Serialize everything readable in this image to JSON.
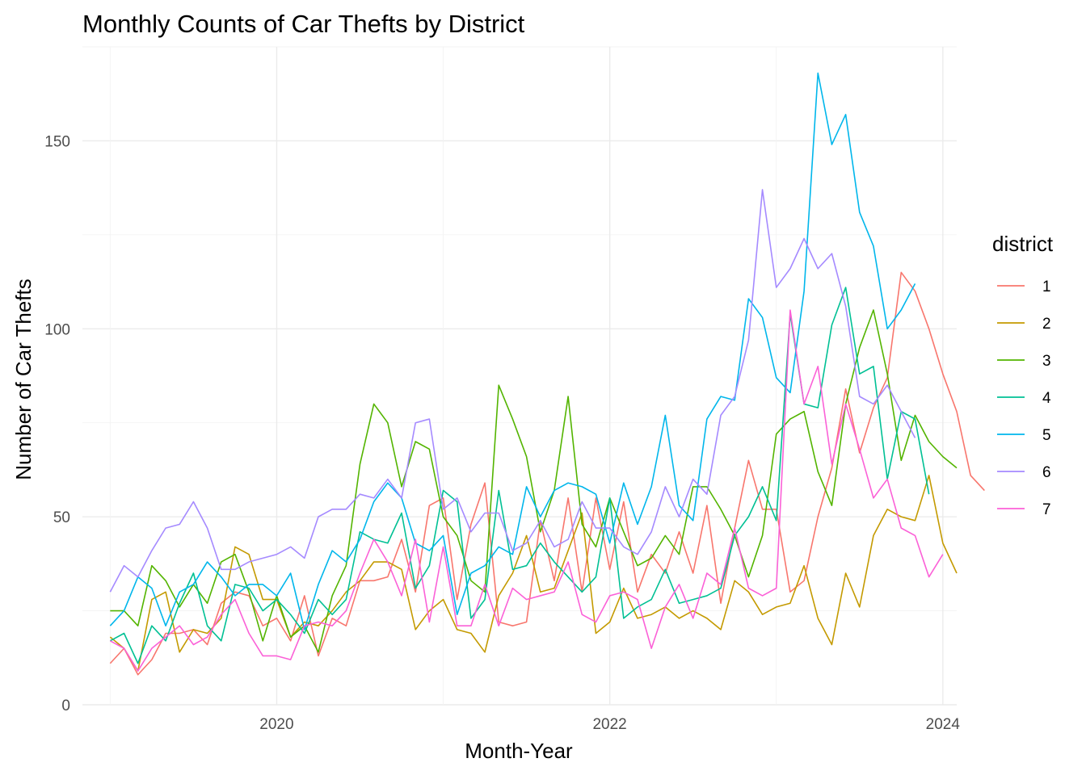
{
  "chart_data": {
    "type": "line",
    "title": "Monthly Counts of Car Thefts by District",
    "xlabel": "Month-Year",
    "ylabel": "Number of Car Thefts",
    "x_start": "2019-01",
    "x_ticks": [
      "2020",
      "2022",
      "2024"
    ],
    "x_tick_values": [
      "2020-01",
      "2022-01",
      "2024-01"
    ],
    "xlim": [
      "2018-11",
      "2024-02"
    ],
    "y_ticks": [
      0,
      50,
      100,
      150
    ],
    "ylim": [
      0,
      175
    ],
    "grid": true,
    "legend": {
      "title": "district",
      "position": "right"
    },
    "series": [
      {
        "name": "1",
        "color": "#F8766D",
        "values": [
          11,
          15,
          8,
          12,
          19,
          19,
          20,
          16,
          27,
          30,
          29,
          21,
          23,
          17,
          29,
          13,
          23,
          21,
          33,
          33,
          34,
          44,
          30,
          53,
          55,
          28,
          48,
          59,
          22,
          21,
          22,
          49,
          33,
          55,
          30,
          55,
          36,
          54,
          30,
          40,
          35,
          46,
          35,
          53,
          27,
          47,
          65,
          52,
          52,
          30,
          33,
          50,
          63,
          84,
          67,
          79,
          87,
          115,
          110,
          100,
          88,
          78,
          61,
          57
        ]
      },
      {
        "name": "2",
        "color": "#C49A00",
        "values": [
          18,
          15,
          9,
          28,
          30,
          14,
          20,
          19,
          23,
          42,
          40,
          28,
          28,
          18,
          22,
          21,
          25,
          30,
          33,
          38,
          38,
          36,
          20,
          25,
          28,
          20,
          19,
          14,
          29,
          35,
          45,
          30,
          31,
          41,
          51,
          19,
          22,
          31,
          23,
          24,
          26,
          23,
          25,
          23,
          20,
          33,
          30,
          24,
          26,
          27,
          37,
          23,
          16,
          35,
          26,
          45,
          52,
          50,
          49,
          61,
          43,
          35
        ]
      },
      {
        "name": "3",
        "color": "#53B400",
        "values": [
          25,
          25,
          21,
          37,
          33,
          26,
          32,
          27,
          38,
          40,
          30,
          17,
          29,
          18,
          21,
          14,
          29,
          37,
          64,
          80,
          75,
          58,
          70,
          68,
          50,
          45,
          33,
          30,
          85,
          76,
          66,
          46,
          57,
          82,
          48,
          42,
          55,
          46,
          37,
          39,
          45,
          40,
          58,
          58,
          52,
          45,
          34,
          45,
          72,
          76,
          78,
          62,
          53,
          80,
          95,
          105,
          88,
          65,
          77,
          70,
          66,
          63
        ]
      },
      {
        "name": "4",
        "color": "#00C094",
        "values": [
          17,
          19,
          11,
          21,
          17,
          27,
          35,
          21,
          17,
          32,
          31,
          25,
          28,
          24,
          19,
          28,
          24,
          28,
          46,
          44,
          43,
          51,
          31,
          37,
          57,
          54,
          23,
          28,
          57,
          36,
          37,
          43,
          38,
          34,
          30,
          34,
          55,
          23,
          26,
          28,
          36,
          27,
          28,
          29,
          31,
          45,
          50,
          58,
          49,
          104,
          80,
          79,
          101,
          111,
          88,
          90,
          60,
          78,
          76,
          56
        ]
      },
      {
        "name": "5",
        "color": "#00B6EB",
        "values": [
          21,
          25,
          34,
          31,
          21,
          30,
          32,
          38,
          34,
          29,
          32,
          32,
          29,
          35,
          20,
          32,
          41,
          38,
          44,
          54,
          59,
          55,
          43,
          41,
          45,
          24,
          35,
          37,
          42,
          40,
          58,
          50,
          57,
          59,
          58,
          56,
          43,
          59,
          48,
          58,
          77,
          53,
          49,
          76,
          82,
          81,
          108,
          103,
          87,
          83,
          110,
          168,
          149,
          157,
          131,
          122,
          100,
          105,
          112
        ]
      },
      {
        "name": "6",
        "color": "#A58AFF",
        "values": [
          30,
          37,
          34,
          41,
          47,
          48,
          54,
          47,
          36,
          36,
          38,
          39,
          40,
          42,
          39,
          50,
          52,
          52,
          56,
          55,
          60,
          55,
          75,
          76,
          52,
          55,
          46,
          51,
          51,
          41,
          43,
          49,
          42,
          44,
          54,
          47,
          47,
          42,
          40,
          46,
          58,
          50,
          60,
          56,
          77,
          82,
          97,
          137,
          111,
          116,
          124,
          116,
          120,
          106,
          82,
          80,
          85,
          78,
          71
        ]
      },
      {
        "name": "7",
        "color": "#FB61D7",
        "values": [
          17,
          15,
          9,
          15,
          18,
          21,
          16,
          18,
          24,
          28,
          19,
          13,
          13,
          12,
          21,
          22,
          21,
          25,
          35,
          44,
          38,
          29,
          44,
          22,
          42,
          21,
          21,
          32,
          21,
          31,
          28,
          29,
          30,
          38,
          24,
          22,
          29,
          30,
          28,
          15,
          26,
          32,
          23,
          35,
          32,
          47,
          31,
          29,
          31,
          105,
          80,
          90,
          64,
          80,
          68,
          55,
          60,
          47,
          45,
          34,
          40
        ]
      }
    ]
  }
}
